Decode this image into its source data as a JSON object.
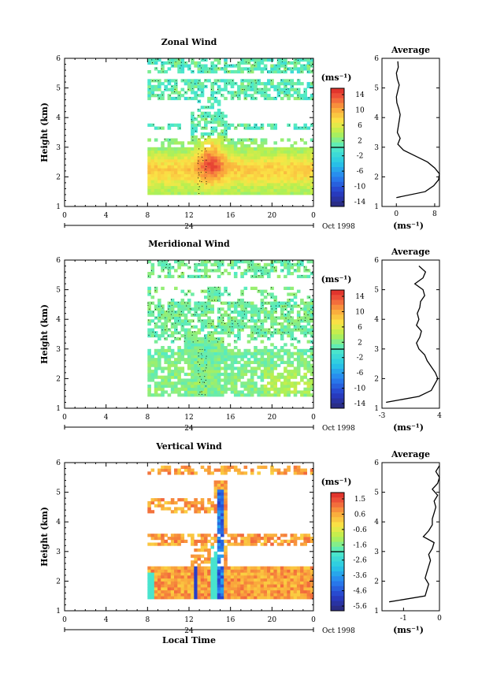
{
  "figure": {
    "xlabel": "Local Time",
    "date_label": "Oct 1998",
    "day_label": "24",
    "average_title": "Average",
    "unit_label": "(ms⁻¹)"
  },
  "chart_data": [
    {
      "type": "heatmap",
      "title": "Zonal Wind",
      "ylabel": "Height (km)",
      "xlabel": "",
      "xlim": [
        0,
        24
      ],
      "ylim": [
        1,
        6
      ],
      "xticks": [
        "0",
        "4",
        "8",
        "12",
        "16",
        "20",
        "0"
      ],
      "yticks": [
        "1",
        "2",
        "3",
        "4",
        "5",
        "6"
      ],
      "colorbar": {
        "label": "(ms⁻¹)",
        "ticks": [
          "14",
          "10",
          "6",
          "2",
          "-2",
          "-6",
          "-10",
          "-14"
        ],
        "range": [
          -16,
          16
        ]
      },
      "data_start_hour": 8,
      "profile": {
        "title": "Average",
        "xlabel": "(ms⁻¹)",
        "xticks": [
          "0",
          "8"
        ],
        "xlim": [
          -3,
          9
        ],
        "heights": [
          1.3,
          1.5,
          1.7,
          1.9,
          2.1,
          2.3,
          2.5,
          2.7,
          2.9,
          3.1,
          3.3,
          3.5,
          3.7,
          3.9,
          4.1,
          4.3,
          4.5,
          4.7,
          4.9,
          5.1,
          5.3,
          5.5,
          5.7,
          5.9
        ],
        "values": [
          0.0,
          6.0,
          7.8,
          8.8,
          9.0,
          8.0,
          6.5,
          4.0,
          1.5,
          0.3,
          0.8,
          0.2,
          0.4,
          0.6,
          0.8,
          0.5,
          0.1,
          0.0,
          0.3,
          0.6,
          0.2,
          0.0,
          0.4,
          0.3
        ]
      }
    },
    {
      "type": "heatmap",
      "title": "Meridional Wind",
      "ylabel": "Height (km)",
      "xlabel": "",
      "xlim": [
        0,
        24
      ],
      "ylim": [
        1,
        6
      ],
      "xticks": [
        "0",
        "4",
        "8",
        "12",
        "16",
        "20",
        "0"
      ],
      "yticks": [
        "1",
        "2",
        "3",
        "4",
        "5",
        "6"
      ],
      "colorbar": {
        "label": "(ms⁻¹)",
        "ticks": [
          "14",
          "10",
          "6",
          "2",
          "-2",
          "-6",
          "-10",
          "-14"
        ],
        "range": [
          -16,
          16
        ]
      },
      "data_start_hour": 8,
      "profile": {
        "title": "Average",
        "xlabel": "(ms⁻¹)",
        "xticks": [
          "-3",
          "4"
        ],
        "xlim": [
          -3,
          4
        ],
        "heights": [
          1.2,
          1.4,
          1.6,
          1.8,
          2.0,
          2.2,
          2.4,
          2.6,
          2.8,
          3.0,
          3.2,
          3.4,
          3.6,
          3.8,
          4.0,
          4.2,
          4.4,
          4.6,
          4.8,
          5.0,
          5.2,
          5.4,
          5.6,
          5.8
        ],
        "values": [
          -2.5,
          1.5,
          3.0,
          3.4,
          3.8,
          3.5,
          3.0,
          2.5,
          2.2,
          1.5,
          1.2,
          1.6,
          1.8,
          1.2,
          1.5,
          1.3,
          1.6,
          1.7,
          2.2,
          2.0,
          1.0,
          2.0,
          2.3,
          1.5
        ]
      }
    },
    {
      "type": "heatmap",
      "title": "Vertical Wind",
      "ylabel": "Height (km)",
      "xlabel": "Local Time",
      "xlim": [
        0,
        24
      ],
      "ylim": [
        1,
        6
      ],
      "xticks": [
        "0",
        "4",
        "8",
        "12",
        "16",
        "20",
        "0"
      ],
      "yticks": [
        "1",
        "2",
        "3",
        "4",
        "5",
        "6"
      ],
      "colorbar": {
        "label": "(ms⁻¹)",
        "ticks": [
          "1.5",
          "0.6",
          "-0.6",
          "-1.6",
          "-2.6",
          "-3.6",
          "-4.6",
          "-5.6"
        ],
        "range": [
          -6,
          2
        ]
      },
      "data_start_hour": 8,
      "profile": {
        "title": "Average",
        "xlabel": "(ms⁻¹)",
        "xticks": [
          "-1",
          "0"
        ],
        "xlim": [
          -1.6,
          0
        ],
        "heights": [
          1.3,
          1.5,
          1.7,
          1.9,
          2.1,
          2.3,
          2.5,
          2.7,
          2.9,
          3.1,
          3.3,
          3.5,
          3.7,
          3.9,
          4.1,
          4.3,
          4.5,
          4.7,
          4.9,
          5.1,
          5.3,
          5.5,
          5.7,
          5.9
        ],
        "values": [
          -1.4,
          -0.4,
          -0.35,
          -0.3,
          -0.4,
          -0.35,
          -0.3,
          -0.25,
          -0.3,
          -0.2,
          -0.15,
          -0.45,
          -0.3,
          -0.2,
          -0.2,
          -0.15,
          -0.1,
          -0.15,
          -0.05,
          -0.2,
          -0.05,
          0.0,
          -0.1,
          0.0
        ]
      }
    }
  ]
}
